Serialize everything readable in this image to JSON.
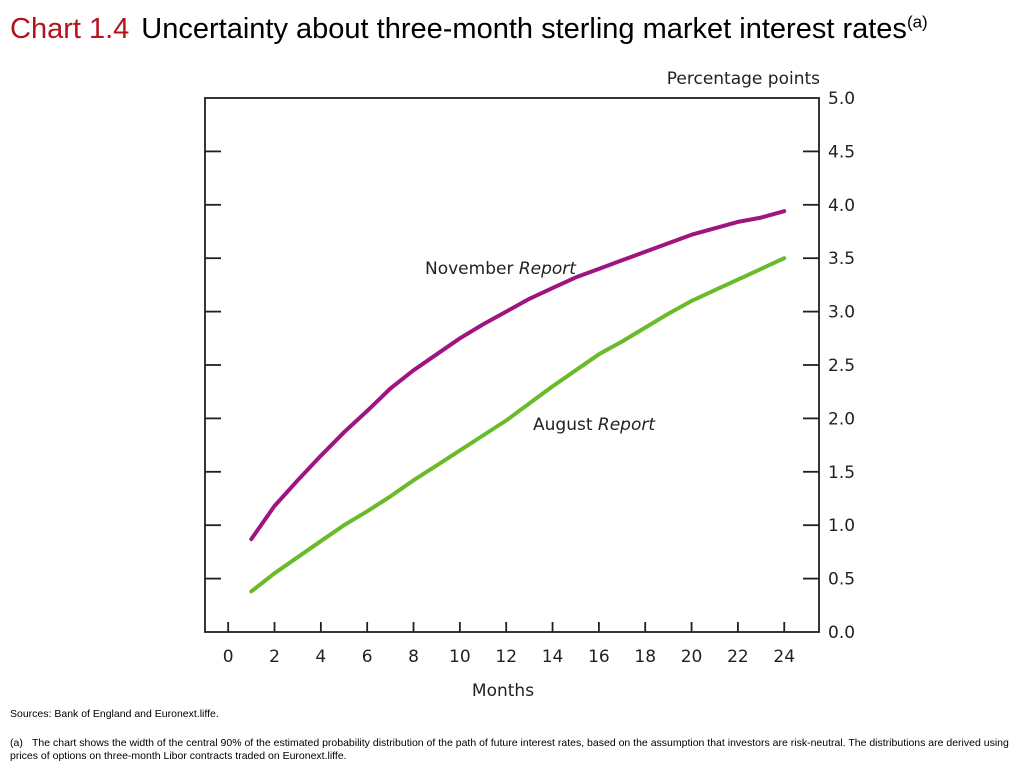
{
  "header": {
    "chart_number": "Chart 1.4",
    "title": "Uncertainty about three-month sterling market interest rates",
    "title_note_marker": "(a)"
  },
  "colors": {
    "chart_number": "#b5121b",
    "november_series": "#a0147f",
    "august_series": "#6abb2a",
    "axes": "#231f20"
  },
  "chart_data": {
    "type": "line",
    "xlabel": "Months",
    "ylabel": "Percentage points",
    "xlim": [
      -1,
      25.5
    ],
    "ylim": [
      0,
      5
    ],
    "x_ticks": [
      0,
      2,
      4,
      6,
      8,
      10,
      12,
      14,
      16,
      18,
      20,
      22,
      24
    ],
    "y_ticks": [
      0.0,
      0.5,
      1.0,
      1.5,
      2.0,
      2.5,
      3.0,
      3.5,
      4.0,
      4.5,
      5.0
    ],
    "y_tick_labels": [
      "0.0",
      "0.5",
      "1.0",
      "1.5",
      "2.0",
      "2.5",
      "3.0",
      "3.5",
      "4.0",
      "4.5",
      "5.0"
    ],
    "y_axis_side": "right",
    "grid": false,
    "series": [
      {
        "label_text": "November",
        "label_italic": "Report",
        "x": [
          1,
          2,
          3,
          4,
          5,
          6,
          7,
          8,
          9,
          10,
          11,
          12,
          13,
          14,
          15,
          16,
          17,
          18,
          19,
          20,
          21,
          22,
          23,
          24
        ],
        "y": [
          0.87,
          1.18,
          1.42,
          1.65,
          1.87,
          2.07,
          2.28,
          2.45,
          2.6,
          2.75,
          2.88,
          3.0,
          3.12,
          3.22,
          3.32,
          3.4,
          3.48,
          3.56,
          3.64,
          3.72,
          3.78,
          3.84,
          3.88,
          3.94
        ]
      },
      {
        "label_text": "August",
        "label_italic": "Report",
        "x": [
          1,
          2,
          3,
          4,
          5,
          6,
          7,
          8,
          9,
          10,
          11,
          12,
          13,
          14,
          15,
          16,
          17,
          18,
          19,
          20,
          21,
          22,
          23,
          24
        ],
        "y": [
          0.38,
          0.55,
          0.7,
          0.85,
          1.0,
          1.13,
          1.27,
          1.42,
          1.56,
          1.7,
          1.84,
          1.98,
          2.14,
          2.3,
          2.45,
          2.6,
          2.72,
          2.85,
          2.98,
          3.1,
          3.2,
          3.3,
          3.4,
          3.5
        ]
      }
    ]
  },
  "sources": "Sources:  Bank of England and Euronext.liffe.",
  "footnote": {
    "marker": "(a)",
    "text": "The chart shows the width of the central 90% of the estimated probability distribution of the path of future interest rates, based on the assumption that investors are risk-neutral.  The distributions are derived using prices of options on three-month Libor contracts traded on Euronext.liffe."
  }
}
